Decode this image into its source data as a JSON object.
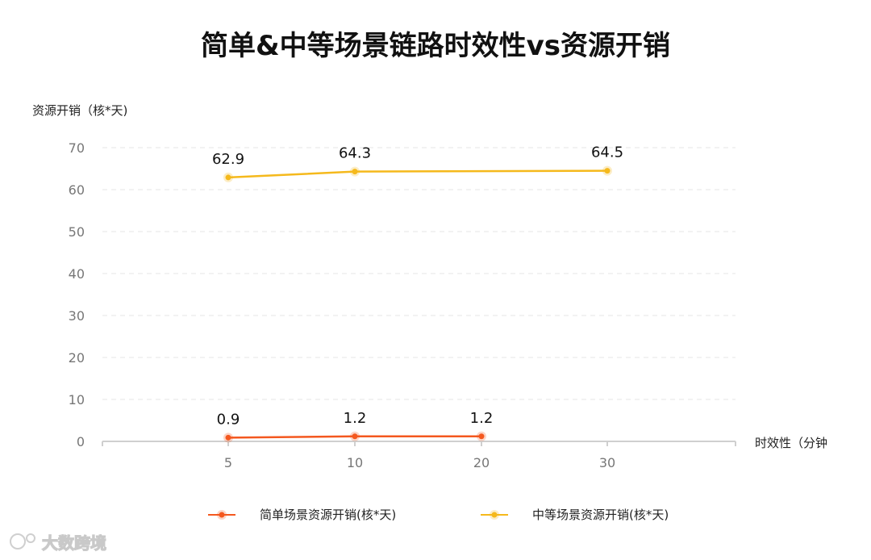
{
  "chart_data": {
    "type": "line",
    "title": "简单&中等场景链路时效性vs资源开销",
    "ylabel": "资源开销（核*天)",
    "xlabel": "时效性（分钟",
    "categories": [
      "5",
      "10",
      "20",
      "30"
    ],
    "ylim": [
      0,
      70
    ],
    "yticks": [
      "0",
      "10",
      "20",
      "30",
      "40",
      "50",
      "60",
      "70"
    ],
    "grid": true,
    "legend_position": "bottom",
    "series": [
      {
        "name": "简单场景资源开销(核*天)",
        "color": "#f4581f",
        "x": [
          "5",
          "10",
          "20"
        ],
        "values": [
          0.9,
          1.2,
          1.2
        ],
        "labels": [
          "0.9",
          "1.2",
          "1.2"
        ]
      },
      {
        "name": "中等场景资源开销(核*天)",
        "color": "#f5b91c",
        "x": [
          "5",
          "10",
          "30"
        ],
        "values": [
          62.9,
          64.3,
          64.5
        ],
        "labels": [
          "62.9",
          "64.3",
          "64.5"
        ]
      }
    ]
  },
  "watermark": "大数跨境"
}
